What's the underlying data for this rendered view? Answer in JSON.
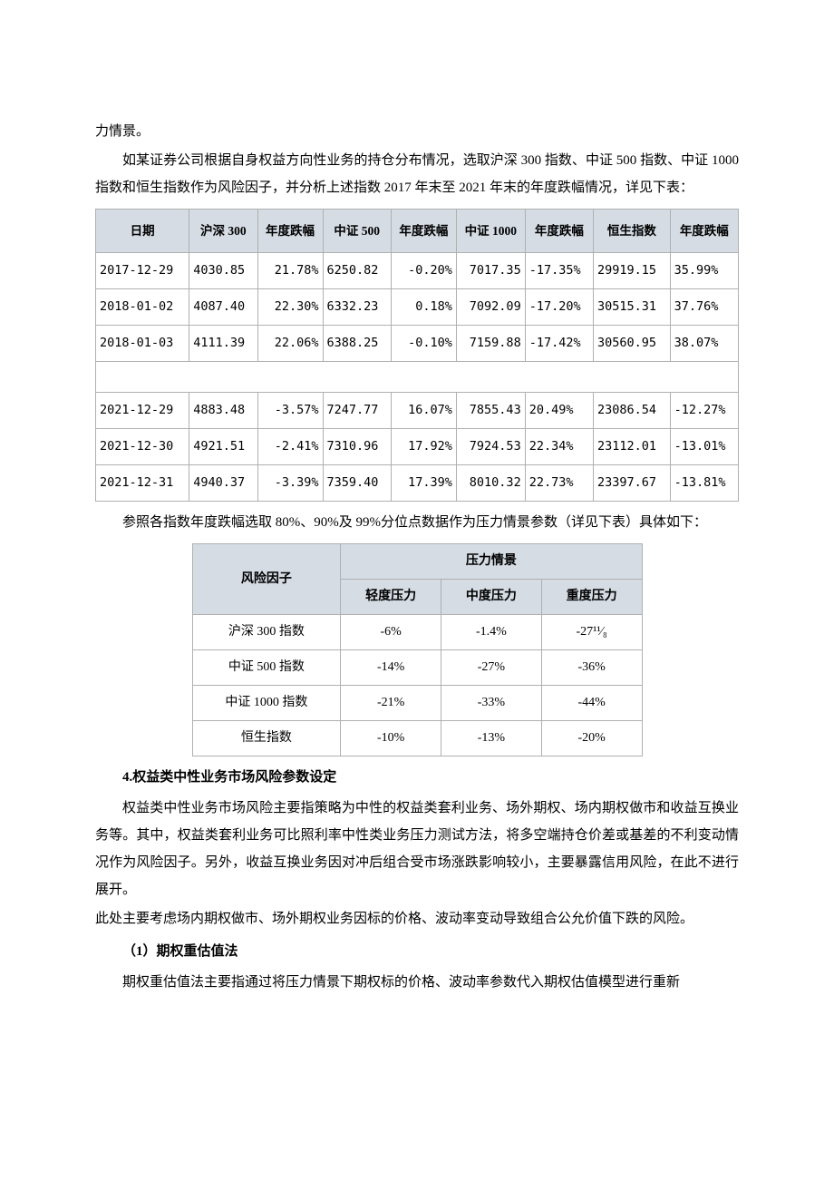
{
  "intro": {
    "line1": "力情景。",
    "line2": "如某证券公司根据自身权益方向性业务的持仓分布情况，选取沪深 300 指数、中证 500 指数、中证 1000 指数和恒生指数作为风险因子，并分析上述指数 2017 年末至 2021 年末的年度跌幅情况，详见下表："
  },
  "table1": {
    "headers": [
      "日期",
      "沪深 300",
      "年度跌幅",
      "中证 500",
      "年度跌幅",
      "中证 1000",
      "年度跌幅",
      "恒生指数",
      "年度跌幅"
    ],
    "rows_top": [
      [
        "2017-12-29",
        "4030.85",
        "21.78%",
        "6250.82",
        "-0.20%",
        "7017.35",
        "-17.35%",
        "29919.15",
        "35.99%"
      ],
      [
        "2018-01-02",
        "4087.40",
        "22.30%",
        "6332.23",
        "0.18%",
        "7092.09",
        "-17.20%",
        "30515.31",
        "37.76%"
      ],
      [
        "2018-01-03",
        "4111.39",
        "22.06%",
        "6388.25",
        "-0.10%",
        "7159.88",
        "-17.42%",
        "30560.95",
        "38.07%"
      ]
    ],
    "rows_bottom": [
      [
        "2021-12-29",
        "4883.48",
        "-3.57%",
        "7247.77",
        "16.07%",
        "7855.43",
        "20.49%",
        "23086.54",
        "-12.27%"
      ],
      [
        "2021-12-30",
        "4921.51",
        "-2.41%",
        "7310.96",
        "17.92%",
        "7924.53",
        "22.34%",
        "23112.01",
        "-13.01%"
      ],
      [
        "2021-12-31",
        "4940.37",
        "-3.39%",
        "7359.40",
        "17.39%",
        "8010.32",
        "22.73%",
        "23397.67",
        "-13.81%"
      ]
    ],
    "col_align": [
      "left",
      "left",
      "right",
      "left",
      "right",
      "right",
      "left",
      "left",
      "left"
    ],
    "header_bg": "#d5dce4",
    "border_color": "#b0b0b0"
  },
  "caption1": "参照各指数年度跌幅选取 80%、90%及 99%分位点数据作为压力情景参数（详见下表）具体如下：",
  "table2": {
    "header_row1": [
      "风险因子",
      "压力情景"
    ],
    "header_row2": [
      "轻度压力",
      "中度压力",
      "重度压力"
    ],
    "rows": [
      [
        "沪深 300 指数",
        "-6%",
        "-1.4%",
        "-27¹¹⁄₈"
      ],
      [
        "中证 500 指数",
        "-14%",
        "-27%",
        "-36%"
      ],
      [
        "中证 1000 指数",
        "-21%",
        "-33%",
        "-44%"
      ],
      [
        "恒生指数",
        "-10%",
        "-13%",
        "-20%"
      ]
    ],
    "header_bg": "#d5dce4",
    "border_color": "#b0b0b0"
  },
  "section4": {
    "title": "4.权益类中性业务市场风险参数设定",
    "para1": "权益类中性业务市场风险主要指策略为中性的权益类套利业务、场外期权、场内期权做市和收益互换业务等。其中，权益类套利业务可比照利率中性类业务压力测试方法，将多空端持仓价差或基差的不利变动情况作为风险因子。另外，收益互换业务因对冲后组合受市场涨跌影响较小，主要暴露信用风险，在此不进行展开。",
    "para2": "此处主要考虑场内期权做市、场外期权业务因标的价格、波动率变动导致组合公允价值下跌的风险。"
  },
  "subsection1": {
    "title": "（1）期权重估值法",
    "para1": "期权重估值法主要指通过将压力情景下期权标的价格、波动率参数代入期权估值模型进行重新"
  },
  "styles": {
    "body_bg": "#ffffff",
    "text_color": "#000000",
    "font_size_body": 15,
    "font_size_table1": 13.5,
    "font_size_table2": 14,
    "line_height": 2.0
  }
}
